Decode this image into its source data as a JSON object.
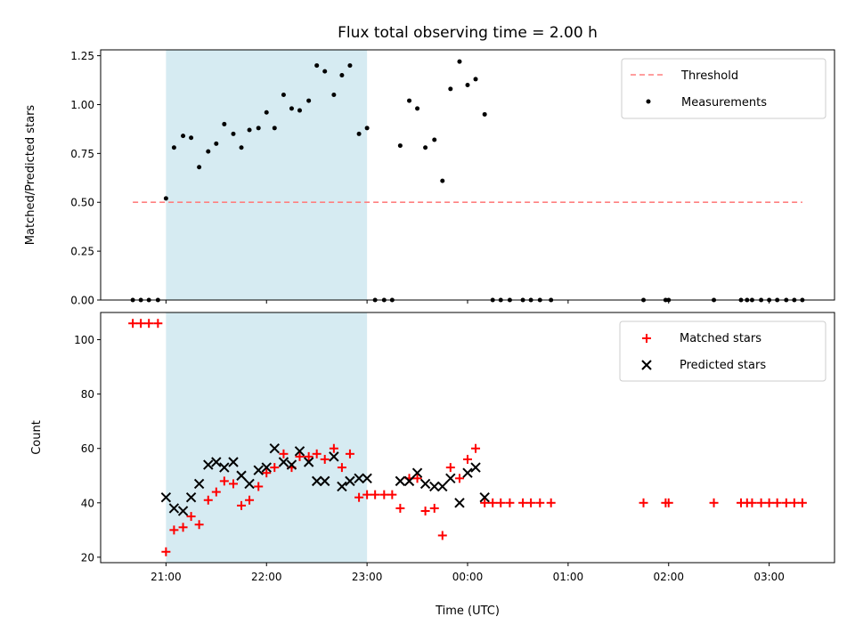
{
  "chart_data": [
    {
      "type": "scatter",
      "title": "Flux total observing time = 2.00 h",
      "xlabel": "",
      "ylabel": "Matched/Predicted stars",
      "x_unit": "hours since 21:00 UTC",
      "xlim": [
        -0.65,
        6.65
      ],
      "ylim": [
        0,
        1.28
      ],
      "yticks": [
        0.0,
        0.25,
        0.5,
        0.75,
        1.0,
        1.25
      ],
      "ytick_labels": [
        "0.00",
        "0.25",
        "0.50",
        "0.75",
        "1.00",
        "1.25"
      ],
      "highlight": {
        "x_start": 0.0,
        "x_end": 2.0,
        "color": "#add8e6"
      },
      "threshold": {
        "name": "Threshold",
        "value": 0.5,
        "x_start": -0.33,
        "x_end": 6.33,
        "color": "#ff7f7f",
        "style": "dashed"
      },
      "legend": {
        "position": "top-right"
      },
      "series": [
        {
          "name": "Measurements",
          "color": "#000000",
          "marker": "dot",
          "points": [
            [
              -0.33,
              0.0
            ],
            [
              -0.25,
              0.0
            ],
            [
              -0.17,
              0.0
            ],
            [
              -0.08,
              0.0
            ],
            [
              0.0,
              0.52
            ],
            [
              0.08,
              0.78
            ],
            [
              0.17,
              0.84
            ],
            [
              0.25,
              0.83
            ],
            [
              0.33,
              0.68
            ],
            [
              0.42,
              0.76
            ],
            [
              0.5,
              0.8
            ],
            [
              0.58,
              0.9
            ],
            [
              0.67,
              0.85
            ],
            [
              0.75,
              0.78
            ],
            [
              0.83,
              0.87
            ],
            [
              0.92,
              0.88
            ],
            [
              1.0,
              0.96
            ],
            [
              1.08,
              0.88
            ],
            [
              1.17,
              1.05
            ],
            [
              1.25,
              0.98
            ],
            [
              1.33,
              0.97
            ],
            [
              1.42,
              1.02
            ],
            [
              1.5,
              1.2
            ],
            [
              1.58,
              1.17
            ],
            [
              1.67,
              1.05
            ],
            [
              1.75,
              1.15
            ],
            [
              1.83,
              1.2
            ],
            [
              1.92,
              0.85
            ],
            [
              2.0,
              0.88
            ],
            [
              2.08,
              0.0
            ],
            [
              2.17,
              0.0
            ],
            [
              2.25,
              0.0
            ],
            [
              2.33,
              0.79
            ],
            [
              2.42,
              1.02
            ],
            [
              2.5,
              0.98
            ],
            [
              2.58,
              0.78
            ],
            [
              2.67,
              0.82
            ],
            [
              2.75,
              0.61
            ],
            [
              2.83,
              1.08
            ],
            [
              2.92,
              1.22
            ],
            [
              3.0,
              1.1
            ],
            [
              3.08,
              1.13
            ],
            [
              3.17,
              0.95
            ],
            [
              3.25,
              0.0
            ],
            [
              3.33,
              0.0
            ],
            [
              3.42,
              0.0
            ],
            [
              3.55,
              0.0
            ],
            [
              3.63,
              0.0
            ],
            [
              3.72,
              0.0
            ],
            [
              3.83,
              0.0
            ],
            [
              4.75,
              0.0
            ],
            [
              4.97,
              0.0
            ],
            [
              5.0,
              0.0
            ],
            [
              5.45,
              0.0
            ],
            [
              5.72,
              0.0
            ],
            [
              5.78,
              0.0
            ],
            [
              5.83,
              0.0
            ],
            [
              5.92,
              0.0
            ],
            [
              6.0,
              0.0
            ],
            [
              6.08,
              0.0
            ],
            [
              6.17,
              0.0
            ],
            [
              6.25,
              0.0
            ],
            [
              6.33,
              0.0
            ]
          ]
        }
      ]
    },
    {
      "type": "scatter",
      "title": "",
      "xlabel": "Time (UTC)",
      "ylabel": "Count",
      "x_unit": "hours since 21:00 UTC",
      "xlim": [
        -0.65,
        6.65
      ],
      "ylim": [
        18,
        110
      ],
      "xticks": [
        0,
        1,
        2,
        3,
        4,
        5,
        6
      ],
      "xtick_labels": [
        "21:00",
        "22:00",
        "23:00",
        "00:00",
        "01:00",
        "02:00",
        "03:00"
      ],
      "yticks": [
        20,
        40,
        60,
        80,
        100
      ],
      "ytick_labels": [
        "20",
        "40",
        "60",
        "80",
        "100"
      ],
      "highlight": {
        "x_start": 0.0,
        "x_end": 2.0,
        "color": "#add8e6"
      },
      "legend": {
        "position": "top-right"
      },
      "series": [
        {
          "name": "Matched stars",
          "color": "#ff0000",
          "marker": "plus",
          "points": [
            [
              -0.33,
              106
            ],
            [
              -0.25,
              106
            ],
            [
              -0.17,
              106
            ],
            [
              -0.08,
              106
            ],
            [
              0.0,
              22
            ],
            [
              0.08,
              30
            ],
            [
              0.17,
              31
            ],
            [
              0.25,
              35
            ],
            [
              0.33,
              32
            ],
            [
              0.42,
              41
            ],
            [
              0.5,
              44
            ],
            [
              0.58,
              48
            ],
            [
              0.67,
              47
            ],
            [
              0.75,
              39
            ],
            [
              0.83,
              41
            ],
            [
              0.92,
              46
            ],
            [
              1.0,
              51
            ],
            [
              1.08,
              53
            ],
            [
              1.17,
              58
            ],
            [
              1.25,
              53
            ],
            [
              1.33,
              57
            ],
            [
              1.42,
              57
            ],
            [
              1.5,
              58
            ],
            [
              1.58,
              56
            ],
            [
              1.67,
              60
            ],
            [
              1.75,
              53
            ],
            [
              1.83,
              58
            ],
            [
              1.92,
              42
            ],
            [
              2.0,
              43
            ],
            [
              2.08,
              43
            ],
            [
              2.17,
              43
            ],
            [
              2.25,
              43
            ],
            [
              2.33,
              38
            ],
            [
              2.42,
              49
            ],
            [
              2.5,
              49
            ],
            [
              2.58,
              37
            ],
            [
              2.67,
              38
            ],
            [
              2.75,
              28
            ],
            [
              2.83,
              53
            ],
            [
              2.92,
              49
            ],
            [
              3.0,
              56
            ],
            [
              3.08,
              60
            ],
            [
              3.17,
              40
            ],
            [
              3.25,
              40
            ],
            [
              3.33,
              40
            ],
            [
              3.42,
              40
            ],
            [
              3.55,
              40
            ],
            [
              3.63,
              40
            ],
            [
              3.72,
              40
            ],
            [
              3.83,
              40
            ],
            [
              4.75,
              40
            ],
            [
              4.97,
              40
            ],
            [
              5.0,
              40
            ],
            [
              5.45,
              40
            ],
            [
              5.72,
              40
            ],
            [
              5.78,
              40
            ],
            [
              5.83,
              40
            ],
            [
              5.92,
              40
            ],
            [
              6.0,
              40
            ],
            [
              6.08,
              40
            ],
            [
              6.17,
              40
            ],
            [
              6.25,
              40
            ],
            [
              6.33,
              40
            ]
          ]
        },
        {
          "name": "Predicted stars",
          "color": "#000000",
          "marker": "x",
          "points": [
            [
              0.0,
              42
            ],
            [
              0.08,
              38
            ],
            [
              0.17,
              37
            ],
            [
              0.25,
              42
            ],
            [
              0.33,
              47
            ],
            [
              0.42,
              54
            ],
            [
              0.5,
              55
            ],
            [
              0.58,
              53
            ],
            [
              0.67,
              55
            ],
            [
              0.75,
              50
            ],
            [
              0.83,
              47
            ],
            [
              0.92,
              52
            ],
            [
              1.0,
              53
            ],
            [
              1.08,
              60
            ],
            [
              1.17,
              55
            ],
            [
              1.25,
              54
            ],
            [
              1.33,
              59
            ],
            [
              1.42,
              55
            ],
            [
              1.5,
              48
            ],
            [
              1.58,
              48
            ],
            [
              1.67,
              57
            ],
            [
              1.75,
              46
            ],
            [
              1.83,
              48
            ],
            [
              1.92,
              49
            ],
            [
              2.0,
              49
            ],
            [
              2.33,
              48
            ],
            [
              2.42,
              48
            ],
            [
              2.5,
              51
            ],
            [
              2.58,
              47
            ],
            [
              2.67,
              46
            ],
            [
              2.75,
              46
            ],
            [
              2.83,
              49
            ],
            [
              2.92,
              40
            ],
            [
              3.0,
              51
            ],
            [
              3.08,
              53
            ],
            [
              3.17,
              42
            ]
          ]
        }
      ]
    }
  ]
}
